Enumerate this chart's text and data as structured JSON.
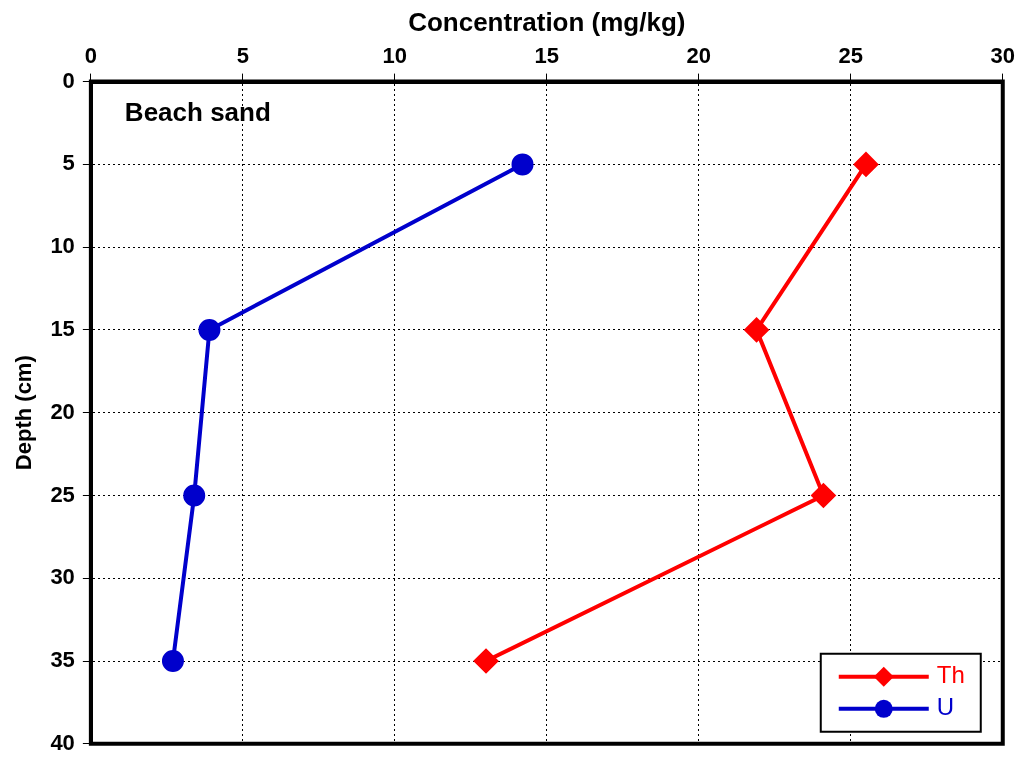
{
  "chart_data": {
    "type": "line",
    "xlabel": "Concentration (mg/kg)",
    "ylabel": "Depth (cm)",
    "annotations": [
      "Beach sand"
    ],
    "xlim": [
      0,
      30
    ],
    "xticks": [
      0,
      5,
      10,
      15,
      20,
      25,
      30
    ],
    "ylim": [
      40,
      0
    ],
    "yticks": [
      0,
      5,
      10,
      15,
      20,
      25,
      30,
      35,
      40
    ],
    "grid": true,
    "legend": "bottom right",
    "line_style": "solid",
    "series": [
      {
        "name": "Th",
        "color": "#ff0000",
        "marker": "diamond",
        "x": [
          25.5,
          21.9,
          24.1,
          13.0
        ],
        "values": [
          5,
          15,
          25,
          35
        ]
      },
      {
        "name": "U",
        "color": "#0000cc",
        "marker": "circle",
        "x": [
          14.2,
          3.9,
          3.4,
          2.7
        ],
        "values": [
          5,
          15,
          25,
          35
        ]
      }
    ]
  }
}
